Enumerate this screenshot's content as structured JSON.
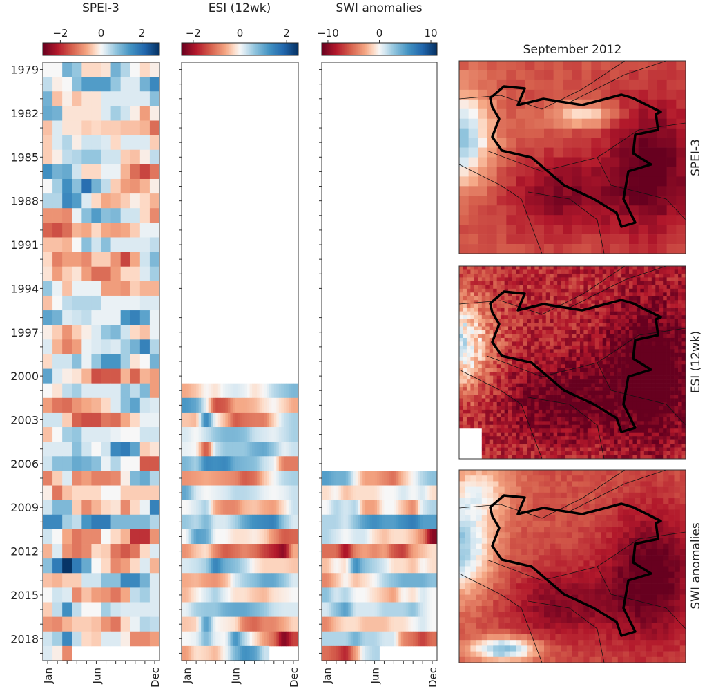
{
  "chart_data": [
    {
      "type": "heatmap",
      "title": "SPEI-3",
      "colormap": "RdBu",
      "clim": [
        -2.86,
        2.86
      ],
      "colorbar_ticks": [
        "−2",
        "0",
        "2"
      ],
      "colorbar_tick_values": [
        -2,
        0,
        2
      ],
      "x_tick_labels": [
        "Jan",
        "Jun",
        "Dec"
      ],
      "months": 12,
      "years": [
        1979,
        1980,
        1981,
        1982,
        1983,
        1984,
        1985,
        1986,
        1987,
        1988,
        1989,
        1990,
        1991,
        1992,
        1993,
        1994,
        1995,
        1996,
        1997,
        1998,
        1999,
        2000,
        2001,
        2002,
        2003,
        2004,
        2005,
        2006,
        2007,
        2008,
        2009,
        2010,
        2011,
        2012,
        2013,
        2014,
        2015,
        2016,
        2017,
        2018,
        2019
      ],
      "values": [
        [
          0,
          0,
          1.0,
          0.7,
          -0.3,
          -0.3,
          -0.2,
          1.0,
          0.5,
          0,
          -0.3,
          -0.1
        ],
        [
          0.4,
          -0.1,
          0,
          0.8,
          1.3,
          1.3,
          1.3,
          0.7,
          0.2,
          0.2,
          1.0,
          1.6
        ],
        [
          1.0,
          -0.5,
          -0.1,
          -0.5,
          -0.2,
          -0.2,
          0.2,
          0.2,
          0.2,
          0.2,
          0.2,
          0.8
        ],
        [
          1.1,
          1.0,
          -0.2,
          -0.2,
          -0.2,
          -0.2,
          0.2,
          0.6,
          0.3,
          -0.1,
          -0.8,
          -0.1
        ],
        [
          -0.5,
          0.2,
          -0.2,
          -0.2,
          -0.4,
          -0.3,
          -0.4,
          -0.4,
          -0.5,
          -0.5,
          -0.6,
          -1.3
        ],
        [
          -0.4,
          0.2,
          0.5,
          -0.1,
          0.3,
          0.3,
          0.2,
          -0.3,
          0.2,
          0.2,
          0.2,
          -0.4
        ],
        [
          -0.4,
          -0.1,
          0.4,
          0.5,
          0.7,
          0.7,
          0.3,
          0.3,
          -0.4,
          -0.5,
          -0.1,
          0.4
        ],
        [
          1.5,
          1.0,
          1.1,
          0.3,
          -0.3,
          -0.3,
          0.1,
          0.1,
          -0.6,
          -1.3,
          -1.7,
          -1.2
        ],
        [
          0,
          0.6,
          1.5,
          0.8,
          2.0,
          1.0,
          0.4,
          -0.4,
          -0.8,
          -0.9,
          -0.6,
          -0.1
        ],
        [
          0.5,
          0.5,
          1.6,
          1.3,
          0.2,
          -0.3,
          -0.7,
          -0.6,
          -0.4,
          -0.1,
          -0.3,
          -0.6
        ],
        [
          -0.9,
          -0.9,
          -1.0,
          0.1,
          0.8,
          1.3,
          0.8,
          0.9,
          0.3,
          0.3,
          -0.3,
          -1.0
        ],
        [
          -1.4,
          -1.6,
          -1.3,
          -0.6,
          -0.7,
          -0.3,
          -0.7,
          -0.8,
          -0.7,
          -0.4,
          0.1,
          0.1
        ],
        [
          -0.5,
          -0.5,
          -0.6,
          0,
          0.8,
          0.3,
          0.8,
          0.2,
          0.2,
          0.2,
          0.2,
          0.4
        ],
        [
          -0.3,
          -1.1,
          -0.8,
          -0.8,
          -1.0,
          -0.4,
          -0.4,
          -0.9,
          -1.7,
          -0.7,
          0.3,
          0.9
        ],
        [
          -0.2,
          -0.8,
          -0.4,
          -0.2,
          -0.8,
          -1.3,
          -1.3,
          -0.8,
          -0.3,
          -0.3,
          0.2,
          0.6
        ],
        [
          0.7,
          0.1,
          -0.5,
          0.1,
          0.1,
          0.1,
          -0.8,
          -0.8,
          -0.9,
          -0.4,
          -0.6,
          -0.6
        ],
        [
          -0.5,
          0,
          0.4,
          0.5,
          0.5,
          0.5,
          0.1,
          0.1,
          0.1,
          0.1,
          0.2,
          0.2
        ],
        [
          1.2,
          1.0,
          0.2,
          0.3,
          0.4,
          0.1,
          0.1,
          0.1,
          1.4,
          1.7,
          1.2,
          0.1
        ],
        [
          -0.1,
          -0.4,
          -0.9,
          -0.4,
          -0.1,
          0.2,
          0.7,
          0.9,
          0.3,
          -0.3,
          -0.5,
          0.1
        ],
        [
          0.2,
          -0.6,
          -1.1,
          -0.8,
          0.1,
          0.2,
          0.3,
          0.2,
          0.6,
          1.0,
          1.7,
          0.5
        ],
        [
          -0.3,
          0.3,
          0.3,
          0.8,
          0.1,
          0.7,
          1.4,
          1.4,
          0.6,
          -0.2,
          0,
          1.0
        ],
        [
          1.2,
          0.2,
          -0.1,
          -0.2,
          -0.6,
          -1.6,
          -1.5,
          -1.5,
          -0.6,
          -1.4,
          -0.6,
          -0.8
        ],
        [
          0,
          -0.2,
          0.4,
          0.6,
          0.2,
          0.2,
          0.2,
          0.2,
          0.8,
          0.4,
          0.9,
          -0.8
        ],
        [
          -0.8,
          -1.2,
          -1.3,
          -0.9,
          -0.7,
          -0.6,
          -0.3,
          0.2,
          0.8,
          1.2,
          0.3,
          0.2
        ],
        [
          0.3,
          0.3,
          -0.4,
          -1.4,
          -1.6,
          -1.6,
          -1.2,
          -1.3,
          -0.7,
          -0.3,
          0.1,
          0.1
        ],
        [
          -0.5,
          0,
          0.6,
          0.7,
          0.2,
          0.2,
          0.2,
          0.1,
          0,
          0,
          0.3,
          0.3
        ],
        [
          0.2,
          0.2,
          0.2,
          0.8,
          0.3,
          0,
          0.3,
          1.6,
          1.8,
          1.2,
          -0.4,
          -0.2
        ],
        [
          0.3,
          0.8,
          0.8,
          1.1,
          1.0,
          0.8,
          0.1,
          0.5,
          0,
          0,
          -1.5,
          -1.5
        ],
        [
          -1.1,
          -0.4,
          0.2,
          -1.0,
          -0.8,
          -1.1,
          -1.1,
          -1.0,
          -0.1,
          0.9,
          1.1,
          0.5
        ],
        [
          -0.1,
          -1.2,
          -0.5,
          -0.3,
          -0.3,
          -0.3,
          0,
          0,
          -0.4,
          -0.4,
          -0.4,
          -0.4
        ],
        [
          0.3,
          0.9,
          0.9,
          -0.4,
          -1.0,
          -0.6,
          -0.3,
          -0.2,
          -1.0,
          -0.3,
          0.1,
          1.7
        ],
        [
          1.6,
          1.6,
          0.6,
          0.4,
          1.4,
          1.8,
          1.8,
          0.9,
          0.9,
          0.9,
          0.9,
          0.5
        ],
        [
          0.3,
          0,
          -0.7,
          -1.2,
          -1.0,
          -1.0,
          0,
          -0.3,
          -0.6,
          -1.9,
          -1.9,
          -0.9
        ],
        [
          -0.6,
          0.2,
          -0.9,
          -1.2,
          -1.0,
          -0.3,
          -0.4,
          -1.2,
          -1.5,
          -1.2,
          -0.3,
          0.2
        ],
        [
          0.8,
          1.8,
          2.8,
          1.8,
          1.1,
          0,
          -0.3,
          -1.0,
          -0.8,
          -0.3,
          0.2,
          -0.6
        ],
        [
          -0.5,
          -0.6,
          -0.4,
          -0.4,
          0.3,
          0.3,
          0.8,
          0.8,
          1.6,
          1.6,
          1.0,
          0.2
        ],
        [
          0,
          0.3,
          0.2,
          -1.0,
          -0.5,
          -0.8,
          -0.9,
          -1.2,
          -0.7,
          0.4,
          0.6,
          0.2
        ],
        [
          -0.4,
          0.4,
          1.5,
          0.4,
          0,
          0,
          0.6,
          0.3,
          0.2,
          0.2,
          0.2,
          0.2
        ],
        [
          -0.9,
          -1.0,
          -0.6,
          -0.4,
          -0.4,
          -0.5,
          -0.9,
          -1.2,
          -0.3,
          0.1,
          0.5,
          0.4
        ],
        [
          0.3,
          0.6,
          1.6,
          0.4,
          -0.3,
          -0.4,
          0.2,
          0.2,
          -0.1,
          -1.0,
          -1.0,
          -0.8
        ],
        [
          0.2,
          -0.1,
          -1.0,
          null,
          null,
          null,
          null,
          null,
          null,
          null,
          null,
          null
        ]
      ]
    },
    {
      "type": "heatmap",
      "title": "ESI (12wk)",
      "colormap": "RdBu",
      "clim": [
        -2.5,
        2.5
      ],
      "colorbar_ticks": [
        "−2",
        "0",
        "2"
      ],
      "colorbar_tick_values": [
        -2,
        0,
        2
      ],
      "x_tick_labels": [
        "Jan",
        "Jun",
        "Dec"
      ],
      "months": 12,
      "years": [
        2001,
        2002,
        2003,
        2004,
        2005,
        2006,
        2007,
        2008,
        2009,
        2010,
        2011,
        2012,
        2013,
        2014,
        2015,
        2016,
        2017,
        2018,
        2019
      ],
      "values": [
        [
          -0.6,
          -0.4,
          0,
          -0.2,
          0.1,
          0.2,
          0.1,
          -0.2,
          0,
          0.4,
          0.6,
          0.8
        ],
        [
          1.2,
          1.0,
          0.1,
          -1.4,
          -1.3,
          -0.6,
          -0.6,
          -0.5,
          -0.2,
          0,
          -0.3,
          -0.6
        ],
        [
          -0.4,
          -0.5,
          1.5,
          0,
          -0.5,
          -1.3,
          -1.1,
          -1.0,
          -1.0,
          -0.3,
          0.3,
          0.5
        ],
        [
          0.2,
          0,
          0.3,
          0.6,
          0.8,
          0.8,
          0.7,
          0.3,
          0.2,
          0.1,
          0.3,
          0.5
        ],
        [
          0.1,
          0,
          -1.4,
          0.3,
          0.6,
          0.6,
          0.6,
          0.9,
          1.0,
          0.6,
          0.1,
          0.3
        ],
        [
          0.8,
          0.5,
          1.4,
          1.3,
          1.4,
          0.9,
          0.8,
          0.7,
          0.3,
          0.1,
          -1.0,
          -1.0
        ],
        [
          -0.8,
          -0.7,
          -0.6,
          -0.7,
          -0.8,
          -0.9,
          -1.3,
          -1.1,
          -0.4,
          0,
          0.4,
          0.5
        ],
        [
          1.0,
          0.2,
          0,
          0.1,
          0.2,
          0.4,
          0.4,
          0.3,
          0.1,
          0,
          0.1,
          0.3
        ],
        [
          0,
          0.2,
          0.5,
          -0.6,
          -0.9,
          -0.9,
          -0.5,
          -0.4,
          -0.6,
          -0.7,
          -0.2,
          0.3
        ],
        [
          0.6,
          0.4,
          0.8,
          0.2,
          0.2,
          0.5,
          1.0,
          1.3,
          1.4,
          1.5,
          0.6,
          0.2
        ],
        [
          0,
          1.1,
          1.0,
          0,
          0,
          -0.2,
          -0.2,
          -0.1,
          -0.3,
          -0.8,
          -1.3,
          -1.2
        ],
        [
          -0.8,
          -0.4,
          -0.2,
          -0.9,
          -1.3,
          -1.1,
          -0.9,
          -1.1,
          -1.5,
          -1.8,
          -2.2,
          -0.6
        ],
        [
          0.2,
          0.3,
          0.5,
          1.5,
          0.9,
          0.7,
          0.4,
          -0.1,
          -0.3,
          -0.3,
          -0.3,
          -0.4
        ],
        [
          -0.6,
          -0.5,
          -0.7,
          -0.8,
          -0.5,
          0.2,
          0.5,
          0.7,
          1.0,
          1.0,
          0.6,
          0.2
        ],
        [
          -0.5,
          -0.1,
          0.2,
          0.5,
          0.1,
          -0.2,
          -0.2,
          -0.4,
          -0.5,
          -0.2,
          -0.1,
          0
        ],
        [
          0.1,
          0.5,
          0.6,
          0.6,
          0.9,
          1.0,
          1.0,
          0.8,
          0.6,
          0.3,
          0.2,
          0.2
        ],
        [
          -0.4,
          -0.3,
          1.2,
          0,
          -0.1,
          -0.2,
          -1.0,
          -1.2,
          -0.9,
          -0.9,
          -0.6,
          -0.3
        ],
        [
          0,
          0.1,
          0.8,
          0.1,
          0,
          1.3,
          0.4,
          -0.2,
          -0.7,
          -1.1,
          -2.3,
          -1.5
        ],
        [
          -0.7,
          -0.2,
          -0.3,
          -0.5,
          0,
          0.8,
          1.3,
          1.1,
          0.3,
          null,
          null,
          null
        ]
      ]
    },
    {
      "type": "heatmap",
      "title": "SWI anomalies",
      "colormap": "RdBu",
      "clim": [
        -11.2,
        11.2
      ],
      "colorbar_ticks": [
        "−10",
        "0",
        "10"
      ],
      "colorbar_tick_values": [
        -10,
        0,
        10
      ],
      "x_tick_labels": [
        "Jan",
        "Jun",
        "Dec"
      ],
      "months": 12,
      "years": [
        2007,
        2008,
        2009,
        2010,
        2011,
        2012,
        2013,
        2014,
        2015,
        2016,
        2017,
        2018,
        2019
      ],
      "values": [
        [
          5,
          4,
          4,
          0,
          -3,
          -3,
          -4,
          -5,
          -2,
          0,
          2,
          3
        ],
        [
          -1,
          0,
          -2,
          -1,
          -1,
          -1,
          0,
          0,
          1,
          0,
          1,
          -1
        ],
        [
          0,
          2,
          1,
          2,
          -3,
          -3,
          0,
          0,
          -2,
          -4,
          1,
          2
        ],
        [
          2,
          2,
          1,
          3,
          5,
          6,
          5,
          5,
          6,
          7,
          5,
          5
        ],
        [
          2,
          1,
          0,
          1,
          1,
          -1,
          -2,
          -1,
          -1,
          -2,
          -4,
          -10
        ],
        [
          -5,
          -5,
          -9,
          -4,
          -3,
          -4,
          -3,
          -6,
          -7,
          -3,
          -2,
          -1
        ],
        [
          -2,
          0,
          -1,
          6,
          3,
          2,
          1,
          -1,
          -1,
          -2,
          0,
          -1
        ],
        [
          -4,
          -2,
          0,
          -2,
          -1,
          0,
          2,
          3,
          4,
          4,
          4,
          3
        ],
        [
          3,
          1,
          2,
          0,
          0,
          -1,
          -2,
          -3,
          0,
          -1,
          1,
          0
        ],
        [
          1,
          3,
          5,
          1,
          1,
          1,
          2,
          2,
          2,
          3,
          1,
          0
        ],
        [
          -4,
          -2,
          -1,
          -1,
          -2,
          -2,
          -2,
          -1,
          -1,
          0,
          1,
          0
        ],
        [
          2,
          2,
          2,
          4,
          2,
          2,
          1,
          1,
          -4,
          -5,
          -7,
          -5
        ],
        [
          -5,
          -6,
          -8,
          -3,
          1,
          2,
          null,
          null,
          null,
          null,
          null,
          null
        ]
      ]
    }
  ],
  "year_tick_labels": [
    "1979",
    "1982",
    "1985",
    "1988",
    "1991",
    "1994",
    "1997",
    "2000",
    "2003",
    "2006",
    "2009",
    "2012",
    "2015",
    "2018"
  ],
  "maps": {
    "title": "September 2012",
    "panels": [
      {
        "label": "SPEI-3"
      },
      {
        "label": "ESI (12wk)"
      },
      {
        "label": "SWI anomalies"
      }
    ]
  },
  "colors": {
    "neg_extreme": "#67001f",
    "neutral": "#f7f7f7",
    "pos_extreme": "#053061"
  }
}
